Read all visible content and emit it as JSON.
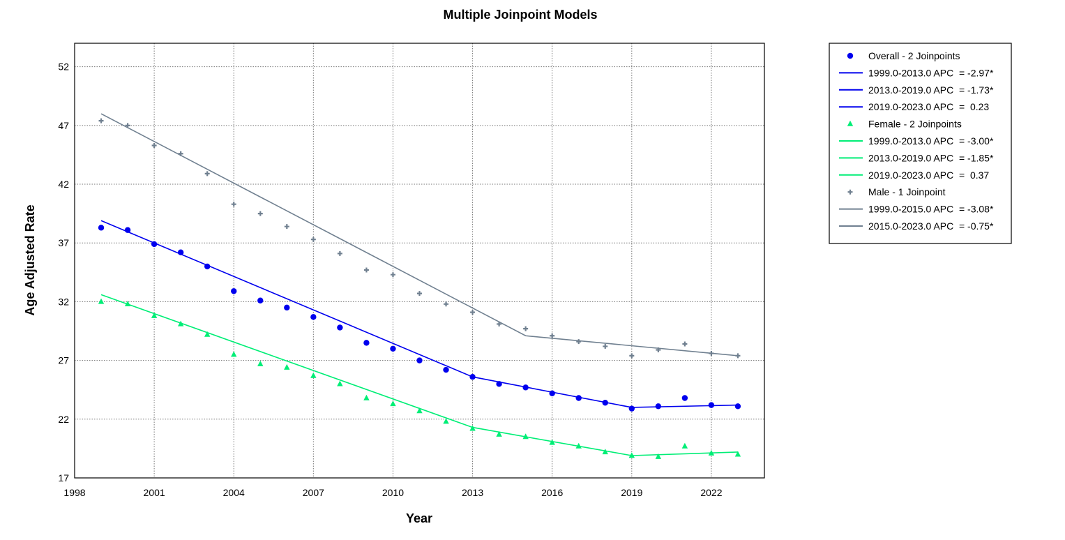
{
  "chart_data": {
    "type": "line",
    "title": "Multiple Joinpoint Models",
    "xlabel": "Year",
    "ylabel": "Age Adjusted Rate",
    "xlim": [
      1998,
      2024
    ],
    "ylim": [
      17,
      54
    ],
    "xticks": [
      1998,
      2001,
      2004,
      2007,
      2010,
      2013,
      2016,
      2019,
      2022
    ],
    "yticks": [
      17,
      22,
      27,
      32,
      37,
      42,
      47,
      52
    ],
    "grid": true,
    "legend_position": "right",
    "x": [
      1999,
      2000,
      2001,
      2002,
      2003,
      2004,
      2005,
      2006,
      2007,
      2008,
      2009,
      2010,
      2011,
      2012,
      2013,
      2014,
      2015,
      2016,
      2017,
      2018,
      2019,
      2020,
      2021,
      2022,
      2023
    ],
    "series": [
      {
        "name": "Overall - 2 Joinpoints",
        "color": "#0000ee",
        "marker": "circle",
        "observed": [
          38.3,
          38.1,
          36.9,
          36.2,
          35.0,
          32.9,
          32.1,
          31.5,
          30.7,
          29.8,
          28.5,
          28.0,
          27.0,
          26.2,
          25.6,
          25.0,
          24.7,
          24.2,
          23.8,
          23.4,
          22.9,
          23.1,
          23.8,
          23.2,
          23.1
        ],
        "fitted_x": [
          1999,
          2013,
          2019,
          2023
        ],
        "fitted_y": [
          38.9,
          25.6,
          23.0,
          23.2
        ],
        "segments": [
          {
            "label": "1999.0-2013.0 APC  = -2.97*"
          },
          {
            "label": "2013.0-2019.0 APC  = -1.73*"
          },
          {
            "label": "2019.0-2023.0 APC  =  0.23"
          }
        ]
      },
      {
        "name": "Female - 2 Joinpoints",
        "color": "#00ee76",
        "marker": "triangle",
        "observed": [
          32.0,
          31.8,
          30.8,
          30.1,
          29.2,
          27.5,
          26.7,
          26.4,
          25.7,
          25.0,
          23.8,
          23.3,
          22.7,
          21.8,
          21.2,
          20.7,
          20.5,
          20.0,
          19.7,
          19.2,
          18.9,
          18.8,
          19.7,
          19.1,
          19.0
        ],
        "fitted_x": [
          1999,
          2013,
          2019,
          2023
        ],
        "fitted_y": [
          32.6,
          21.3,
          18.9,
          19.2
        ],
        "segments": [
          {
            "label": "1999.0-2013.0 APC  = -3.00*"
          },
          {
            "label": "2013.0-2019.0 APC  = -1.85*"
          },
          {
            "label": "2019.0-2023.0 APC  =  0.37"
          }
        ]
      },
      {
        "name": "Male - 1 Joinpoint",
        "color": "#708090",
        "marker": "plus",
        "observed": [
          47.4,
          47.0,
          45.3,
          44.6,
          42.9,
          40.3,
          39.5,
          38.4,
          37.3,
          36.1,
          34.7,
          34.3,
          32.7,
          31.8,
          31.1,
          30.1,
          29.7,
          29.1,
          28.6,
          28.2,
          27.4,
          27.9,
          28.4,
          27.6,
          27.4
        ],
        "fitted_x": [
          1999,
          2015,
          2023
        ],
        "fitted_y": [
          48.0,
          29.1,
          27.4
        ],
        "segments": [
          {
            "label": "1999.0-2015.0 APC  = -3.08*"
          },
          {
            "label": "2015.0-2023.0 APC  = -0.75*"
          }
        ]
      }
    ]
  }
}
